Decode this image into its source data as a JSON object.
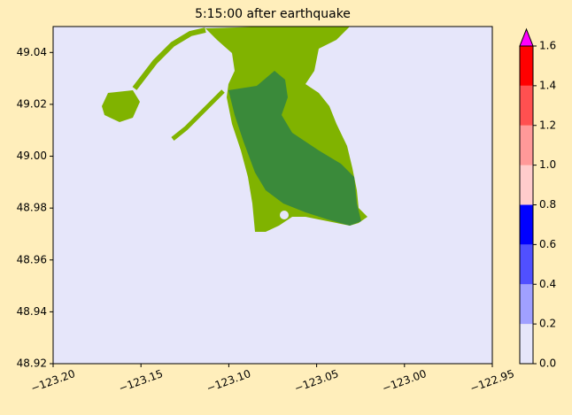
{
  "chart_data": {
    "type": "map",
    "title": "5:15:00 after earthquake",
    "xlim": [
      -123.2,
      -122.95
    ],
    "xticks": [
      {
        "value": -123.2,
        "label": "−123.20"
      },
      {
        "value": -123.15,
        "label": "−123.15"
      },
      {
        "value": -123.1,
        "label": "−123.10"
      },
      {
        "value": -123.05,
        "label": "−123.05"
      },
      {
        "value": -123.0,
        "label": "−123.00"
      },
      {
        "value": -122.95,
        "label": "−122.95"
      }
    ],
    "ylim": [
      48.92,
      49.05
    ],
    "yticks": [
      48.92,
      48.94,
      48.96,
      48.98,
      {
        "value": 49.0,
        "label": "49.00"
      },
      49.02,
      49.04
    ],
    "colorbar": {
      "levels": [
        0,
        0.2,
        0.4,
        0.6,
        0.8,
        1.0,
        1.2,
        1.4,
        1.6
      ],
      "colors": [
        "#e6e6fa",
        "#a0a0ff",
        "#5050ff",
        "#0000ff",
        "#ffcccc",
        "#ff9999",
        "#ff5050",
        "#ff0000"
      ],
      "over_color": "#ff00ff",
      "ticks": [
        {
          "value": 0,
          "label": "0.0"
        },
        0.2,
        0.4,
        0.6,
        0.8,
        {
          "value": 1.0,
          "label": "1.0"
        },
        1.2,
        1.4,
        1.6
      ]
    }
  }
}
